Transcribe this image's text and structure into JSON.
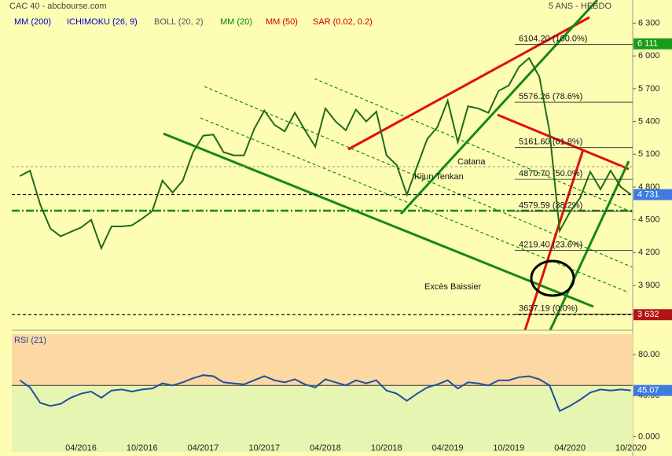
{
  "chart_data": [
    {
      "type": "line",
      "title": "CAC 40 - abcbourse.com",
      "subtitle": "5 ANS - HEBDO",
      "indicators": [
        {
          "name": "MM (200)",
          "color": "#0000cc"
        },
        {
          "name": "ICHIMOKU (26, 9)",
          "color": "#0000cc"
        },
        {
          "name": "BOLL (20, 2)",
          "color": "#555555"
        },
        {
          "name": "MM (20)",
          "color": "#008800"
        },
        {
          "name": "MM (50)",
          "color": "#cc0000"
        },
        {
          "name": "SAR (0.02, 0.2)",
          "color": "#cc0000"
        }
      ],
      "x": [
        "10/2015",
        "11/2015",
        "12/2015",
        "01/2016",
        "02/2016",
        "03/2016",
        "04/2016",
        "05/2016",
        "06/2016",
        "07/2016",
        "08/2016",
        "09/2016",
        "10/2016",
        "11/2016",
        "12/2016",
        "01/2017",
        "02/2017",
        "03/2017",
        "04/2017",
        "05/2017",
        "06/2017",
        "07/2017",
        "08/2017",
        "09/2017",
        "10/2017",
        "11/2017",
        "12/2017",
        "01/2018",
        "02/2018",
        "03/2018",
        "04/2018",
        "05/2018",
        "06/2018",
        "07/2018",
        "08/2018",
        "09/2018",
        "10/2018",
        "11/2018",
        "12/2018",
        "01/2019",
        "02/2019",
        "03/2019",
        "04/2019",
        "05/2019",
        "06/2019",
        "07/2019",
        "08/2019",
        "09/2019",
        "10/2019",
        "11/2019",
        "12/2019",
        "01/2020",
        "02/2020",
        "03/2020",
        "04/2020",
        "05/2020",
        "06/2020",
        "07/2020",
        "08/2020",
        "09/2020",
        "10/2020"
      ],
      "values": [
        4900,
        4950,
        4640,
        4420,
        4350,
        4390,
        4430,
        4500,
        4240,
        4440,
        4440,
        4450,
        4510,
        4580,
        4860,
        4750,
        4860,
        5120,
        5270,
        5280,
        5120,
        5090,
        5090,
        5330,
        5500,
        5370,
        5310,
        5480,
        5320,
        5170,
        5520,
        5400,
        5320,
        5510,
        5400,
        5490,
        5090,
        5000,
        4730,
        4990,
        5240,
        5350,
        5590,
        5210,
        5540,
        5520,
        5480,
        5680,
        5730,
        5900,
        5980,
        5810,
        5310,
        4400,
        4570,
        4700,
        4940,
        4780,
        4950,
        4800,
        4731
      ],
      "color": "#1e6b1e",
      "xticks": [
        "04/2016",
        "10/2016",
        "04/2017",
        "10/2017",
        "04/2018",
        "10/2018",
        "04/2019",
        "10/2019",
        "04/2020",
        "10/2020"
      ],
      "ylim": [
        3490,
        6440
      ],
      "yticks": [
        {
          "value": 6300,
          "label": "6 300"
        },
        {
          "value": 6000,
          "label": "6 000"
        },
        {
          "value": 5700,
          "label": "5 700"
        },
        {
          "value": 5400,
          "label": "5 400"
        },
        {
          "value": 5100,
          "label": "5 100"
        },
        {
          "value": 4800,
          "label": "4 800"
        },
        {
          "value": 4500,
          "label": "4 500"
        },
        {
          "value": 4200,
          "label": "4 200"
        },
        {
          "value": 3900,
          "label": "3 900"
        }
      ],
      "fibonacci": [
        {
          "value": 6104.2,
          "label": "6104.20 (100.0%)"
        },
        {
          "value": 5576.26,
          "label": "5576.26 (78.6%)"
        },
        {
          "value": 5161.6,
          "label": "5161.60 (61.8%)"
        },
        {
          "value": 4870.7,
          "label": "4870.70 (50.0%)"
        },
        {
          "value": 4579.59,
          "label": "4579.59 (38.2%)"
        },
        {
          "value": 4219.4,
          "label": "4219.40 (23.6%)"
        },
        {
          "value": 3637.19,
          "label": "3637.19 (0.0%)"
        }
      ],
      "markers": [
        {
          "value": 6111,
          "label": "6 111",
          "color": "#1a9c1a"
        },
        {
          "value": 4731,
          "label": "4 731",
          "color": "#3d7be0"
        },
        {
          "value": 3632,
          "label": "3 632",
          "color": "#b31515"
        }
      ],
      "annotations": [
        "Catana",
        "Kijun Tenkan",
        "Excès Baissier"
      ]
    },
    {
      "type": "line",
      "title": "RSI (21)",
      "values": [
        55,
        48,
        33,
        30,
        32,
        38,
        42,
        44,
        38,
        45,
        46,
        44,
        46,
        47,
        52,
        50,
        53,
        57,
        60,
        59,
        53,
        52,
        51,
        55,
        59,
        55,
        53,
        56,
        51,
        48,
        56,
        53,
        50,
        55,
        52,
        55,
        45,
        42,
        35,
        42,
        48,
        51,
        55,
        47,
        53,
        52,
        50,
        55,
        55,
        58,
        59,
        56,
        50,
        25,
        30,
        36,
        43,
        46,
        45,
        46,
        45.07
      ],
      "color": "#1f4fa0",
      "midline": 50,
      "ylim": [
        -15,
        100
      ],
      "yticks": [
        {
          "value": 80,
          "label": "80.00"
        },
        {
          "value": 40,
          "label": "40.00"
        },
        {
          "value": 0,
          "label": "0.000"
        }
      ]
    }
  ]
}
